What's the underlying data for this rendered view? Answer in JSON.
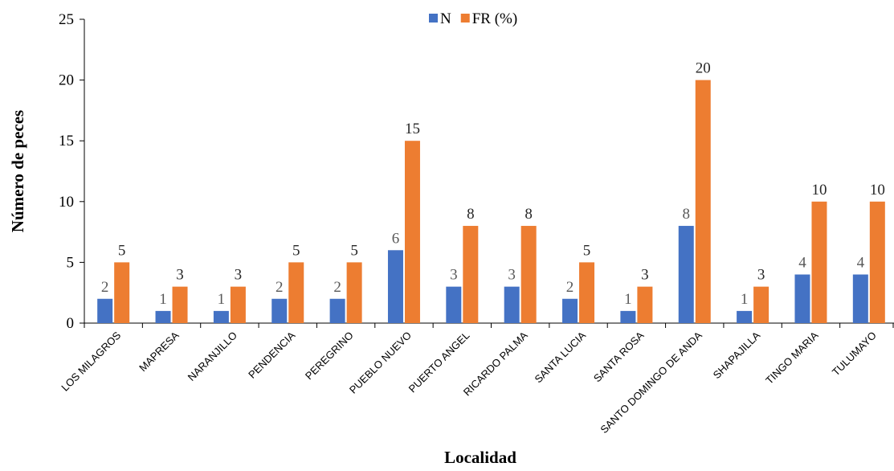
{
  "chart_data": {
    "type": "bar",
    "title": "",
    "xlabel": "Localidad",
    "ylabel": "Número de peces",
    "ylim": [
      0,
      25
    ],
    "yticks": [
      0,
      5,
      10,
      15,
      20,
      25
    ],
    "grid": false,
    "legend_position": "top",
    "categories": [
      "LOS MILAGROS",
      "MAPRESA",
      "NARANJILLO",
      "PENDENCIA",
      "PEREGRINO",
      "PUEBLO NUEVO",
      "PUERTO ANGEL",
      "RICARDO PALMA",
      "SANTA LUCIA",
      "SANTA ROSA",
      "SANTO DOMINGO DE ANDA",
      "SHAPAJILLA",
      "TINGO MARIA",
      "TULUMAYO"
    ],
    "series": [
      {
        "name": "N",
        "color": "#4472C4",
        "label_color": "#595959",
        "values": [
          2,
          1,
          1,
          2,
          2,
          6,
          3,
          3,
          2,
          1,
          8,
          1,
          4,
          4
        ]
      },
      {
        "name": "FR (%)",
        "color": "#ED7D31",
        "label_color": "#262626",
        "values": [
          5,
          3,
          3,
          5,
          5,
          15,
          8,
          8,
          5,
          3,
          20,
          3,
          10,
          10
        ]
      }
    ]
  }
}
